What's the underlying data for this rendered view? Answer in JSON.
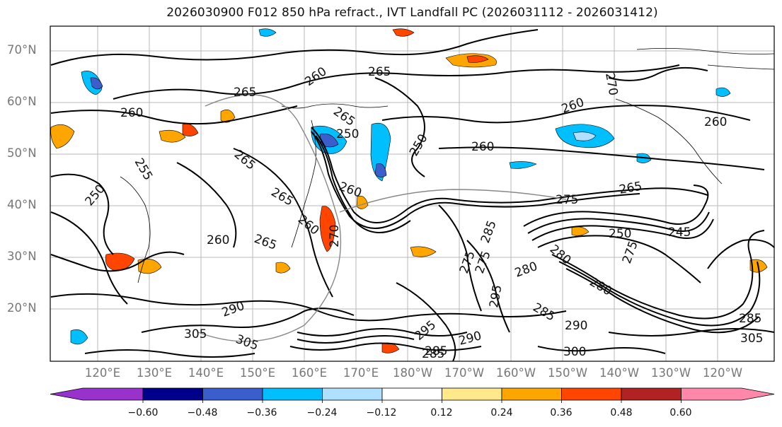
{
  "title": "2026030900 F012 850 hPa refract., IVT Landfall PC (2026031112 - 2026031412)",
  "lat_labels": [
    "70°N",
    "60°N",
    "50°N",
    "40°N",
    "30°N",
    "20°N"
  ],
  "lon_labels": [
    "120°E",
    "130°E",
    "140°E",
    "150°E",
    "160°E",
    "170°E",
    "180°W",
    "170°W",
    "160°W",
    "150°W",
    "140°W",
    "130°W",
    "120°W"
  ],
  "colorbar": {
    "ticks": [
      "−0.60",
      "−0.48",
      "−0.36",
      "−0.24",
      "−0.12",
      "0.12",
      "0.24",
      "0.36",
      "0.48",
      "0.60"
    ],
    "colors": [
      "#9932cc",
      "#00008b",
      "#3a5fcd",
      "#00bfff",
      "#b0e0ff",
      "#ffffff",
      "#ffe98a",
      "#ffa500",
      "#ff4500",
      "#b22222",
      "#ff88aa"
    ]
  },
  "contour_labels": [
    "265",
    "260",
    "265",
    "260",
    "265",
    "260",
    "250",
    "265",
    "260",
    "260",
    "265",
    "265",
    "250",
    "255",
    "260",
    "275",
    "265",
    "270",
    "275",
    "280",
    "285",
    "290",
    "290",
    "285",
    "295",
    "300",
    "305",
    "305",
    "275",
    "280",
    "285",
    "270",
    "245",
    "250",
    "275",
    "280",
    "260",
    "250",
    "285",
    "260",
    "285",
    "290",
    "295",
    "305"
  ],
  "legend": {
    "positive_palette": "warm",
    "negative_palette": "cool"
  }
}
